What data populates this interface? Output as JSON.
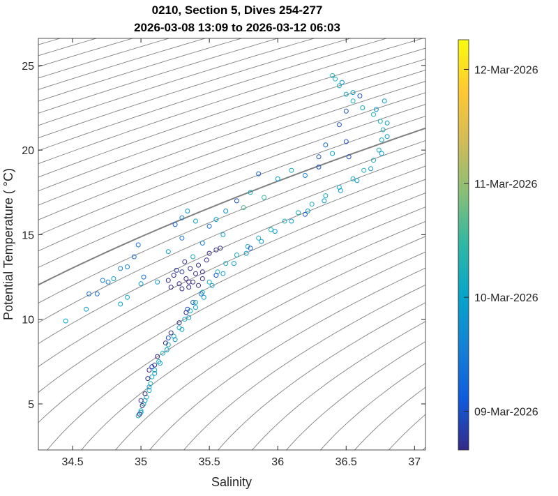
{
  "chart_data": {
    "type": "scatter",
    "title": [
      "0210, Section 5, Dives 254-277",
      "2026-03-08 13:09 to 2026-03-12 06:03"
    ],
    "xlabel": "Salinity",
    "ylabel": "Potential Temperature ( °C)",
    "xlim": [
      34.25,
      37.08
    ],
    "ylim": [
      2.28,
      26.6
    ],
    "xticks": [
      34.5,
      35,
      35.5,
      36,
      36.5,
      37
    ],
    "xtick_labels": [
      "34.5",
      "35",
      "35.5",
      "36",
      "36.5",
      "37"
    ],
    "yticks": [
      5,
      10,
      15,
      20,
      25
    ],
    "ytick_labels": [
      "5",
      "10",
      "15",
      "20",
      "25"
    ],
    "grid": false,
    "isopycnals": {
      "start": 20.0,
      "end": 30.0,
      "step": 0.2,
      "highlight": 26.0,
      "color": "#808080"
    },
    "colorbar": {
      "colormap": "parula",
      "range_days_from_2026_03_08": [
        0.66,
        4.26
      ],
      "ticks": [
        1,
        2,
        3,
        4
      ],
      "tick_labels": [
        "09-Mar-2026",
        "10-Mar-2026",
        "11-Mar-2026",
        "12-Mar-2026"
      ]
    },
    "point_fields": [
      "salinity",
      "potential_temperature",
      "days_from_2026_03_08"
    ],
    "points": [
      [
        34.98,
        4.3,
        2.2
      ],
      [
        35.0,
        4.6,
        2.2
      ],
      [
        35.02,
        5.0,
        2.2
      ],
      [
        35.04,
        5.4,
        2.2
      ],
      [
        35.06,
        5.8,
        2.2
      ],
      [
        35.07,
        6.2,
        2.2
      ],
      [
        35.08,
        6.6,
        2.2
      ],
      [
        35.1,
        7.0,
        2.2
      ],
      [
        35.13,
        7.5,
        2.2
      ],
      [
        35.16,
        8.0,
        2.2
      ],
      [
        35.2,
        8.5,
        2.2
      ],
      [
        35.24,
        9.0,
        2.2
      ],
      [
        35.28,
        9.5,
        2.2
      ],
      [
        35.32,
        10.0,
        2.2
      ],
      [
        35.36,
        10.5,
        2.2
      ],
      [
        35.4,
        11.0,
        2.2
      ],
      [
        35.45,
        11.6,
        2.2
      ],
      [
        35.5,
        12.2,
        2.2
      ],
      [
        35.56,
        12.8,
        2.2
      ],
      [
        35.62,
        13.3,
        2.2
      ],
      [
        35.7,
        13.8,
        2.2
      ],
      [
        35.78,
        14.3,
        2.2
      ],
      [
        35.86,
        14.8,
        2.2
      ],
      [
        35.95,
        15.3,
        2.2
      ],
      [
        36.05,
        15.8,
        2.2
      ],
      [
        36.15,
        16.3,
        2.2
      ],
      [
        36.25,
        16.8,
        2.2
      ],
      [
        36.35,
        17.3,
        2.2
      ],
      [
        36.45,
        17.8,
        2.2
      ],
      [
        36.55,
        18.3,
        2.2
      ],
      [
        36.63,
        18.8,
        2.2
      ],
      [
        36.7,
        19.4,
        2.2
      ],
      [
        36.74,
        20.0,
        2.2
      ],
      [
        36.76,
        20.6,
        2.2
      ],
      [
        36.77,
        21.2,
        2.2
      ],
      [
        36.75,
        21.7,
        2.2
      ],
      [
        36.7,
        22.1,
        2.2
      ],
      [
        36.62,
        22.5,
        2.2
      ],
      [
        36.55,
        22.9,
        2.2
      ],
      [
        36.5,
        23.3,
        2.2
      ],
      [
        36.45,
        23.8,
        2.2
      ],
      [
        36.42,
        24.2,
        2.2
      ],
      [
        36.4,
        24.4,
        2.2
      ],
      [
        35.0,
        4.5,
        1.9
      ],
      [
        35.03,
        5.2,
        1.9
      ],
      [
        35.06,
        6.0,
        1.9
      ],
      [
        35.1,
        6.8,
        1.9
      ],
      [
        35.14,
        7.4,
        1.9
      ],
      [
        35.19,
        8.2,
        1.9
      ],
      [
        35.25,
        8.8,
        1.9
      ],
      [
        35.3,
        9.4,
        1.9
      ],
      [
        35.35,
        10.1,
        1.9
      ],
      [
        35.4,
        10.7,
        1.9
      ],
      [
        35.46,
        11.3,
        1.9
      ],
      [
        35.52,
        12.0,
        1.9
      ],
      [
        35.6,
        12.7,
        1.9
      ],
      [
        35.68,
        13.3,
        1.9
      ],
      [
        35.77,
        13.9,
        1.9
      ],
      [
        35.88,
        14.6,
        1.9
      ],
      [
        35.98,
        15.2,
        1.9
      ],
      [
        36.1,
        15.8,
        1.9
      ],
      [
        36.22,
        16.4,
        1.9
      ],
      [
        36.34,
        17.0,
        1.9
      ],
      [
        36.46,
        17.6,
        1.9
      ],
      [
        36.58,
        18.2,
        1.9
      ],
      [
        36.68,
        18.9,
        1.9
      ],
      [
        36.76,
        19.8,
        1.9
      ],
      [
        36.8,
        20.8,
        1.9
      ],
      [
        36.8,
        21.6,
        1.9
      ],
      [
        36.72,
        22.4,
        1.9
      ],
      [
        36.78,
        22.9,
        1.9
      ],
      [
        36.55,
        23.4,
        1.9
      ],
      [
        36.47,
        24.0,
        1.9
      ],
      [
        36.5,
        22.3,
        1.0
      ],
      [
        36.45,
        21.5,
        1.0
      ],
      [
        36.5,
        20.5,
        1.0
      ],
      [
        36.52,
        19.6,
        1.0
      ],
      [
        36.3,
        19.0,
        1.0
      ],
      [
        36.6,
        23.2,
        1.0
      ],
      [
        35.08,
        7.2,
        1.0
      ],
      [
        35.2,
        8.9,
        1.0
      ],
      [
        35.34,
        10.6,
        1.0
      ],
      [
        35.55,
        12.6,
        1.0
      ],
      [
        35.8,
        14.2,
        1.0
      ],
      [
        36.2,
        16.2,
        1.0
      ],
      [
        34.99,
        4.4,
        0.4
      ],
      [
        35.01,
        4.9,
        0.3
      ],
      [
        35.03,
        5.6,
        0.2
      ],
      [
        35.05,
        6.5,
        0.1
      ],
      [
        35.06,
        7.0,
        0.0
      ],
      [
        35.1,
        7.3,
        0.1
      ],
      [
        35.0,
        5.2,
        0.5
      ],
      [
        35.12,
        7.8,
        0.3
      ],
      [
        35.18,
        8.6,
        0.4
      ],
      [
        35.22,
        9.2,
        0.5
      ],
      [
        35.28,
        9.8,
        0.6
      ],
      [
        35.33,
        10.4,
        0.7
      ],
      [
        35.38,
        11.0,
        1.2
      ],
      [
        35.44,
        11.5,
        1.3
      ],
      [
        35.2,
        12.3,
        0.6
      ],
      [
        35.24,
        12.6,
        0.7
      ],
      [
        35.28,
        12.1,
        0.5
      ],
      [
        35.3,
        12.8,
        0.8
      ],
      [
        35.33,
        12.4,
        0.6
      ],
      [
        35.36,
        13.0,
        0.7
      ],
      [
        35.38,
        12.2,
        0.4
      ],
      [
        35.4,
        12.7,
        0.5
      ],
      [
        35.42,
        13.2,
        0.6
      ],
      [
        35.45,
        12.4,
        0.3
      ],
      [
        35.32,
        13.4,
        0.7
      ],
      [
        35.26,
        12.9,
        0.8
      ],
      [
        35.22,
        11.9,
        0.4
      ],
      [
        35.35,
        11.9,
        0.3
      ],
      [
        35.48,
        13.5,
        0.2
      ],
      [
        35.55,
        14.1,
        0.0
      ],
      [
        35.45,
        12.8,
        0.0
      ],
      [
        35.35,
        12.2,
        0.1
      ],
      [
        35.5,
        13.9,
        0.05
      ],
      [
        35.58,
        14.2,
        0.1
      ],
      [
        35.42,
        12.0,
        0.05
      ],
      [
        35.3,
        11.8,
        0.15
      ],
      [
        34.45,
        9.9,
        2.0
      ],
      [
        34.6,
        10.6,
        1.9
      ],
      [
        34.62,
        11.5,
        1.3
      ],
      [
        34.68,
        11.5,
        1.3
      ],
      [
        34.72,
        12.3,
        1.5
      ],
      [
        34.76,
        12.2,
        1.5
      ],
      [
        34.8,
        12.4,
        2.0
      ],
      [
        34.85,
        13.0,
        1.6
      ],
      [
        34.9,
        13.1,
        1.6
      ],
      [
        34.95,
        13.7,
        1.4
      ],
      [
        34.98,
        14.4,
        1.4
      ],
      [
        34.9,
        11.3,
        2.0
      ],
      [
        34.85,
        10.9,
        2.0
      ],
      [
        35.0,
        12.1,
        1.8
      ],
      [
        35.02,
        12.5,
        1.3
      ],
      [
        35.12,
        12.2,
        1.8
      ],
      [
        35.2,
        14.0,
        2.0
      ],
      [
        35.25,
        15.6,
        1.2
      ],
      [
        35.3,
        16.0,
        1.6
      ],
      [
        35.34,
        16.4,
        1.9
      ],
      [
        35.4,
        15.8,
        2.0
      ],
      [
        35.5,
        15.5,
        1.3
      ],
      [
        35.55,
        15.9,
        2.0
      ],
      [
        35.62,
        16.4,
        1.8
      ],
      [
        35.7,
        17.0,
        1.0
      ],
      [
        35.8,
        17.5,
        2.1
      ],
      [
        35.86,
        18.6,
        1.2
      ],
      [
        35.9,
        17.2,
        2.5
      ],
      [
        36.0,
        18.3,
        1.9
      ],
      [
        36.1,
        18.8,
        2.1
      ],
      [
        36.2,
        18.5,
        1.5
      ],
      [
        36.3,
        19.6,
        1.0
      ],
      [
        36.35,
        20.3,
        1.2
      ],
      [
        36.4,
        19.8,
        2.0
      ],
      [
        35.75,
        16.6,
        2.6
      ],
      [
        35.6,
        15.0,
        2.0
      ],
      [
        35.45,
        14.5,
        1.6
      ],
      [
        35.38,
        13.7,
        2.2
      ],
      [
        35.3,
        14.8,
        1.3
      ]
    ]
  }
}
